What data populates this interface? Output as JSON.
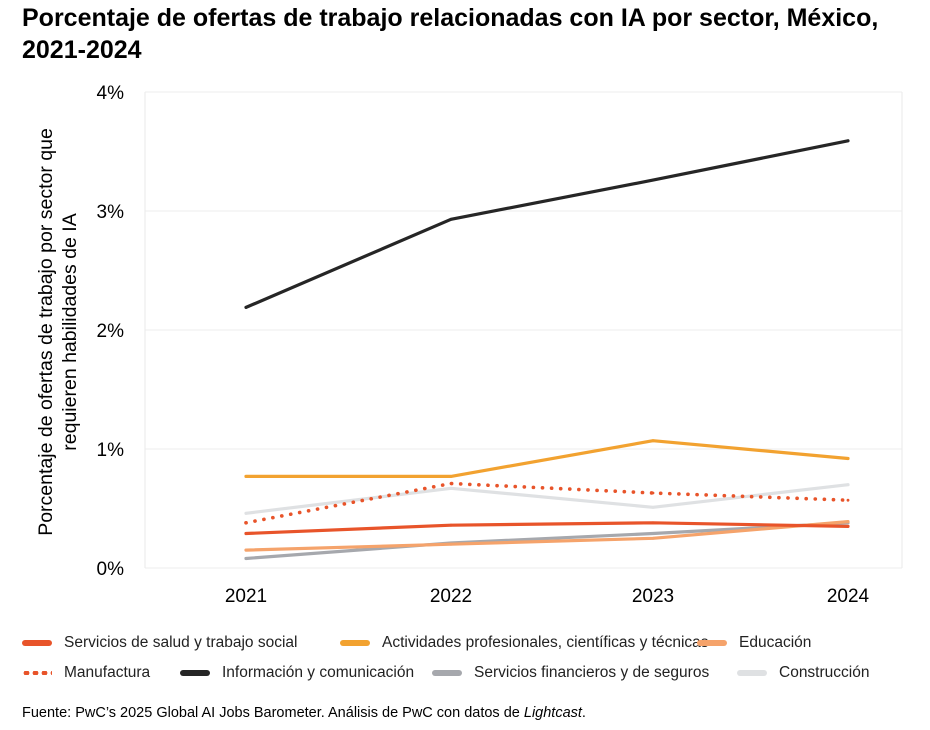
{
  "page": {
    "title": "Porcentaje de ofertas de trabajo relacionadas con IA por sector, México, 2021-2024",
    "source_prefix": "Fuente:  PwC’s 2025 Global AI Jobs Barometer. Análisis de PwC con datos de ",
    "source_italic": "Lightcast",
    "source_suffix": "."
  },
  "chart_data": {
    "type": "line",
    "title": "Porcentaje de ofertas de trabajo relacionadas con IA por sector, México, 2021-2024",
    "ylabel": "Porcentaje de ofertas de trabajo por sector que requieren habilidades de IA",
    "xlabel": "",
    "categories": [
      "2021",
      "2022",
      "2023",
      "2024"
    ],
    "ylim": [
      0,
      4
    ],
    "yticks": [
      0,
      1,
      2,
      3,
      4
    ],
    "ytick_labels": [
      "0%",
      "1%",
      "2%",
      "3%",
      "4%"
    ],
    "grid": "horizontal",
    "legend_position": "bottom",
    "series": [
      {
        "name": "Construcción",
        "values": [
          0.46,
          0.67,
          0.51,
          0.7
        ],
        "color": "#dfe1e3",
        "style": "solid"
      },
      {
        "name": "Servicios financieros y de seguros",
        "values": [
          0.08,
          0.21,
          0.29,
          0.38
        ],
        "color": "#a6a8ad",
        "style": "solid"
      },
      {
        "name": "Educación",
        "values": [
          0.15,
          0.2,
          0.25,
          0.39
        ],
        "color": "#f5a36b",
        "style": "solid"
      },
      {
        "name": "Servicios de salud y trabajo social",
        "values": [
          0.29,
          0.36,
          0.38,
          0.35
        ],
        "color": "#e8542a",
        "style": "solid"
      },
      {
        "name": "Manufactura",
        "values": [
          0.38,
          0.71,
          0.63,
          0.57
        ],
        "color": "#e8542a",
        "style": "dotted"
      },
      {
        "name": "Actividades profesionales, científicas y técnicas",
        "values": [
          0.77,
          0.77,
          1.07,
          0.92
        ],
        "color": "#f2a230",
        "style": "solid"
      },
      {
        "name": "Información y comunicación",
        "values": [
          2.19,
          2.93,
          3.26,
          3.59
        ],
        "color": "#262626",
        "style": "solid"
      }
    ],
    "legend_order": [
      "Servicios de salud y trabajo social",
      "Actividades profesionales, científicas y técnicas",
      "Educación",
      "Manufactura",
      "Información y comunicación",
      "Servicios financieros y de seguros",
      "Construcción"
    ]
  }
}
